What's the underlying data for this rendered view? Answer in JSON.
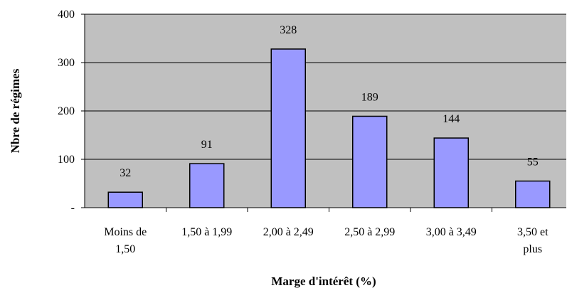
{
  "chart_data": {
    "type": "bar",
    "x_label": "Marge d'intérêt (%)",
    "y_label": "Nbre de régimes",
    "categories": [
      "Moins de\n1,50",
      "1,50 à 1,99",
      "2,00 à 2,49",
      "2,50 à 2,99",
      "3,00 à 3,49",
      "3,50 et\nplus"
    ],
    "values": [
      32,
      91,
      328,
      189,
      144,
      55
    ],
    "color": "#9999ff",
    "plot_background": "#c0c0c0",
    "ylim": [
      0,
      400
    ],
    "yticks": [
      {
        "value": 0,
        "label": "-"
      },
      100,
      200,
      300,
      400
    ],
    "grid": true
  }
}
